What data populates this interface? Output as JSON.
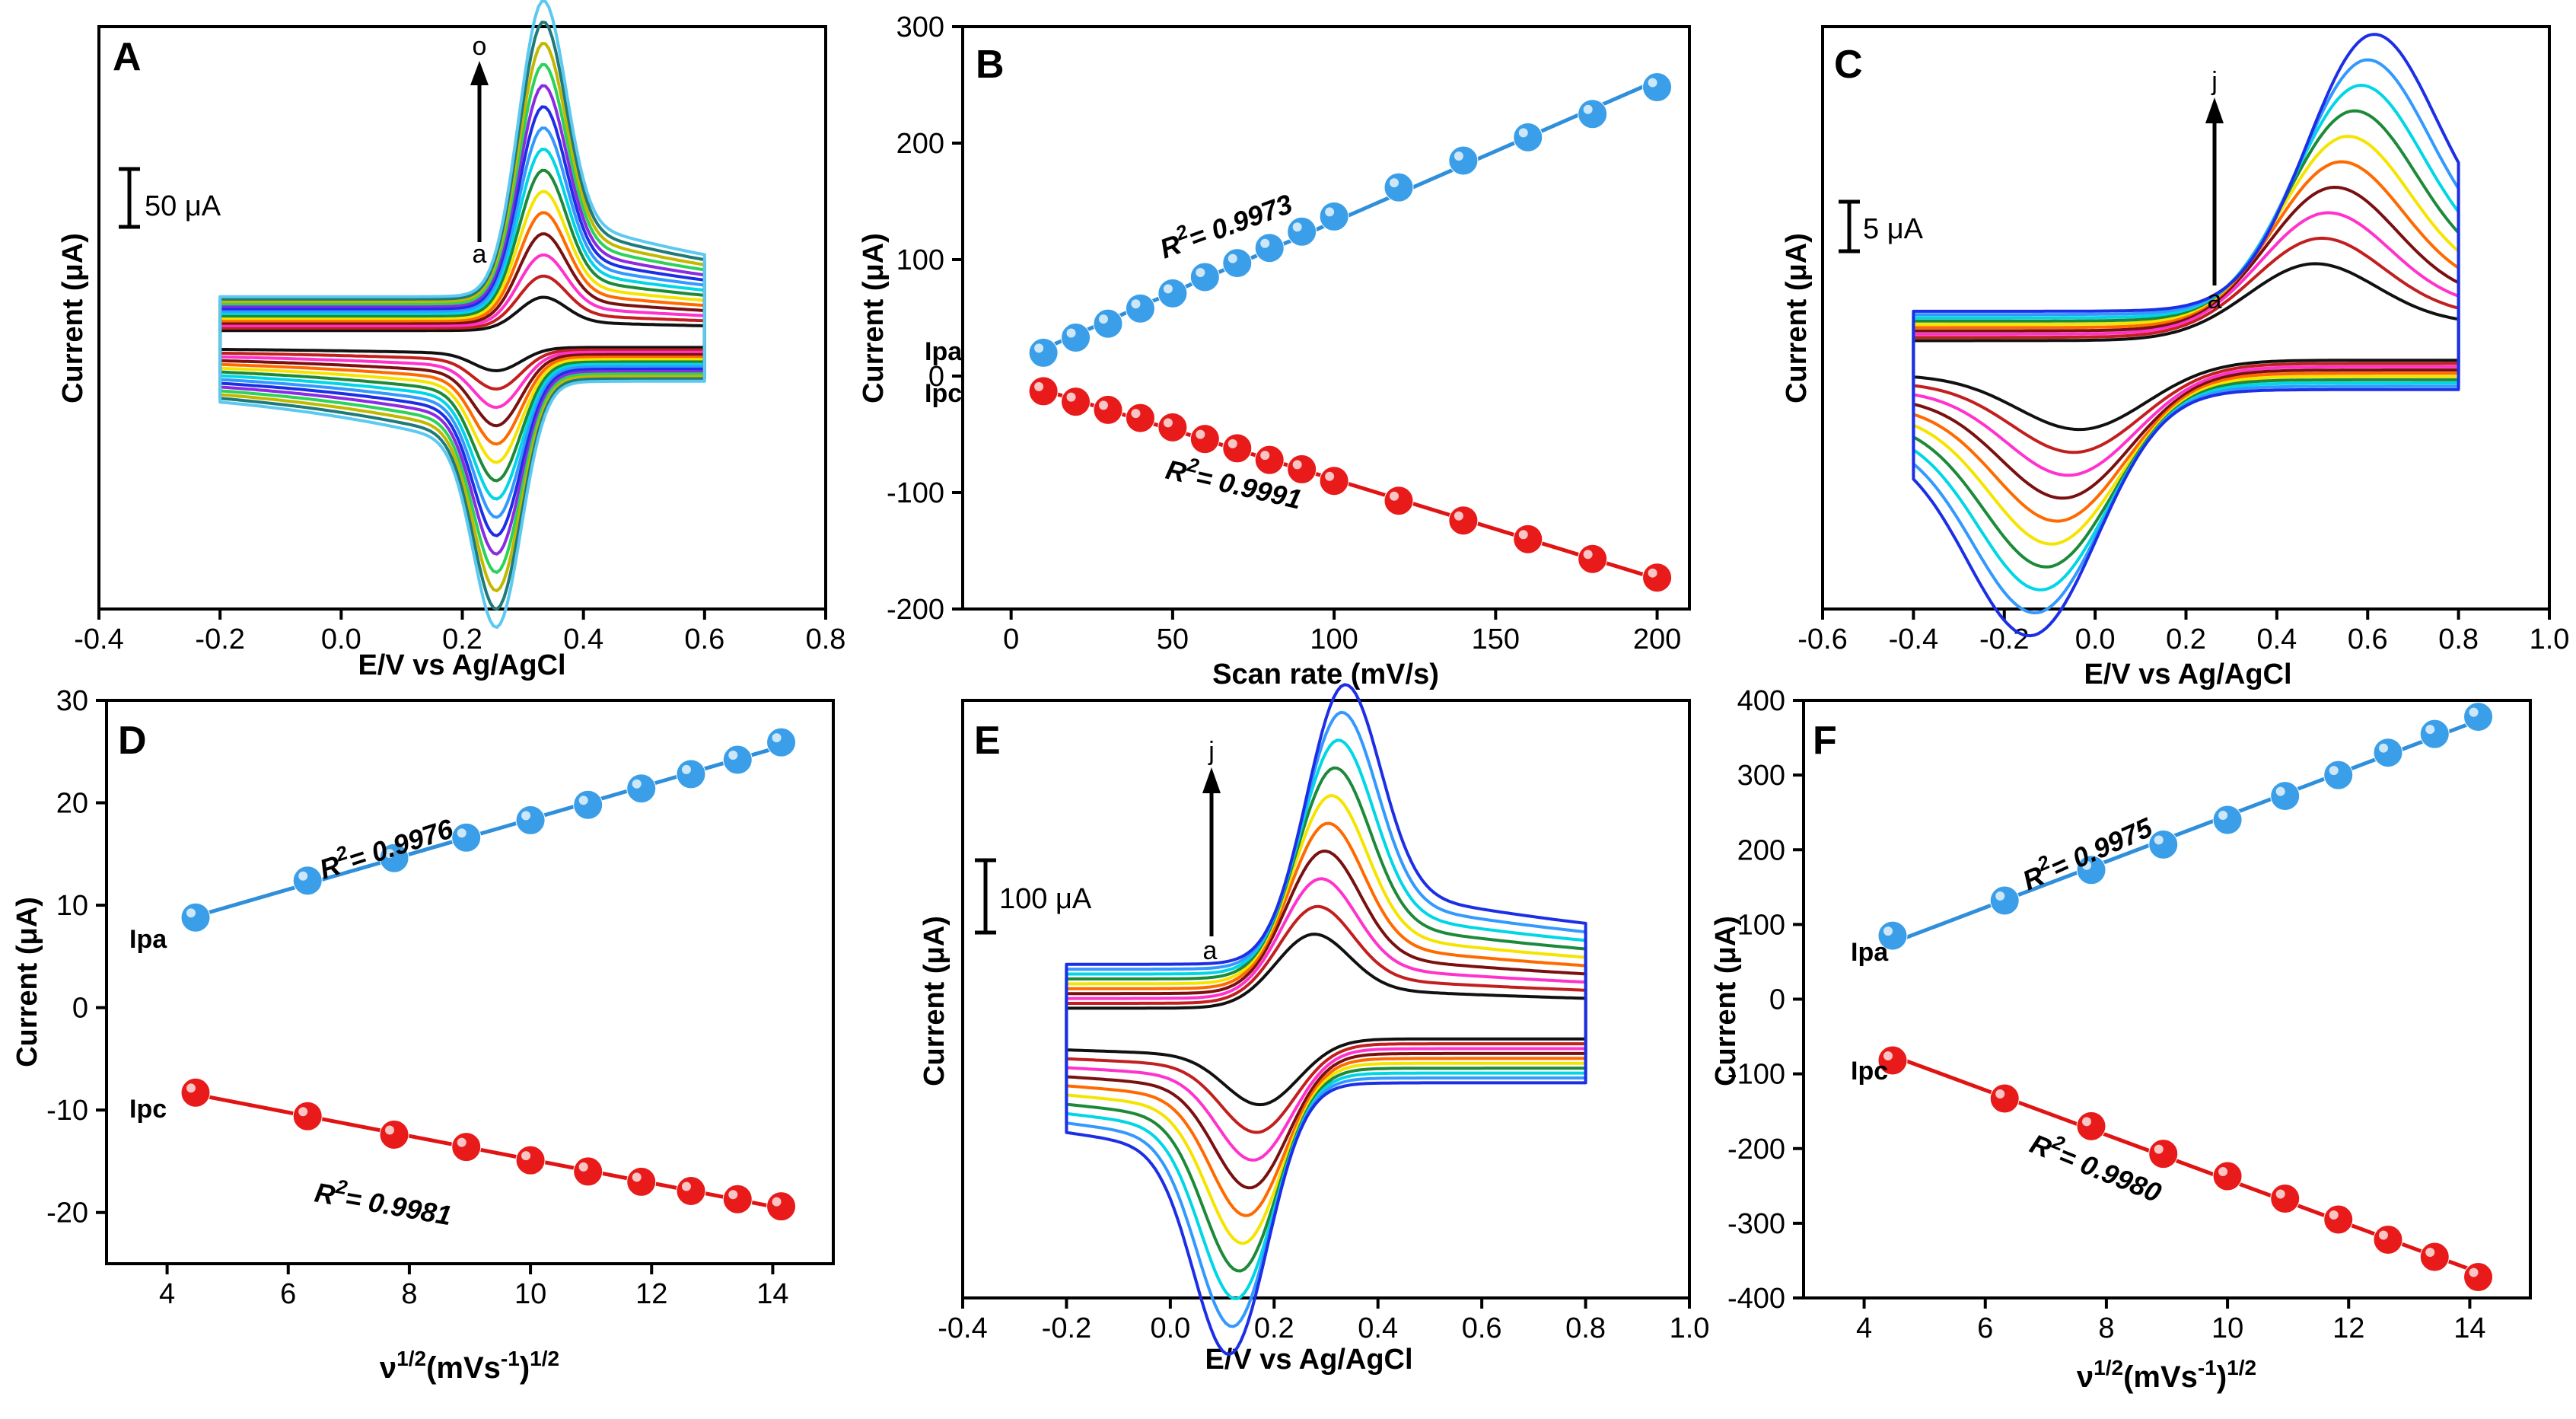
{
  "colors": {
    "cv": [
      "#111111",
      "#c21f1f",
      "#ff33cc",
      "#7a1010",
      "#ff6a00",
      "#f5e400",
      "#1d8a3a",
      "#00d6e6",
      "#3399ff",
      "#1c2ee6",
      "#8b2be2",
      "#2ed15a",
      "#c2b800",
      "#1f7a7a",
      "#5cc9f0",
      "#2a2aff"
    ],
    "ipa_line": "#2f8fdb",
    "ipa_marker": "#3a9fe8",
    "ipc_line": "#e11414",
    "ipc_marker": "#e81a1a",
    "frame": "#000000"
  },
  "chart_data": [
    {
      "panel": "A",
      "type": "line",
      "subtype": "cyclic-voltammogram",
      "xlabel": "E/V vs Ag/AgCl",
      "ylabel": "Current (μA)",
      "xlim": [
        -0.4,
        0.8
      ],
      "xticks": [
        -0.4,
        -0.2,
        0.0,
        0.2,
        0.4,
        0.6,
        0.8
      ],
      "tick_labels": [
        "-0.4",
        "-0.2",
        "0.0",
        "0.2",
        "0.4",
        "0.6",
        "0.8"
      ],
      "scalebar": "50 μA",
      "arrow_from": "a",
      "arrow_to": "o",
      "curve_count": 15,
      "cv_params": {
        "e_start": -0.2,
        "e_end": 0.6,
        "ea": 0.33,
        "ec": 0.26,
        "ipa_max": 178,
        "ipc_max": 148,
        "cap_max": 30,
        "ipa_min": 20,
        "ipc_min": 14,
        "cap_min": 6,
        "width": 0.055,
        "yrange": [
          -170,
          200
        ]
      }
    },
    {
      "panel": "B",
      "type": "scatter",
      "subtype": "linear-fit",
      "xlabel": "Scan rate (mV/s)",
      "ylabel": "Current (μA)",
      "xlim": [
        -15,
        210
      ],
      "ylim": [
        -200,
        300
      ],
      "xticks": [
        0,
        50,
        100,
        150,
        200
      ],
      "yticks": [
        -200,
        -100,
        0,
        100,
        200,
        300
      ],
      "tick_labels_x": [
        "0",
        "50",
        "100",
        "150",
        "200"
      ],
      "tick_labels_y": [
        "-200",
        "-100",
        "0",
        "100",
        "200",
        "300"
      ],
      "series": [
        {
          "name": "Ipa",
          "x": [
            10,
            20,
            30,
            40,
            50,
            60,
            70,
            80,
            90,
            100,
            120,
            140,
            160,
            180,
            200
          ],
          "values": [
            20,
            33,
            45,
            58,
            71,
            85,
            97,
            110,
            124,
            137,
            162,
            185,
            205,
            225,
            248
          ],
          "r2": "0.9973"
        },
        {
          "name": "Ipc",
          "x": [
            10,
            20,
            30,
            40,
            50,
            60,
            70,
            80,
            90,
            100,
            120,
            140,
            160,
            180,
            200
          ],
          "values": [
            -13,
            -22,
            -29,
            -36,
            -44,
            -54,
            -62,
            -72,
            -80,
            -90,
            -107,
            -124,
            -140,
            -157,
            -173
          ],
          "r2": "0.9991"
        }
      ]
    },
    {
      "panel": "C",
      "type": "line",
      "subtype": "cyclic-voltammogram",
      "xlabel": "E/V vs Ag/AgCl",
      "ylabel": "Current (μA)",
      "xlim": [
        -0.6,
        1.0
      ],
      "xticks": [
        -0.6,
        -0.4,
        -0.2,
        0.0,
        0.2,
        0.4,
        0.6,
        0.8,
        1.0
      ],
      "tick_labels": [
        "-0.6",
        "-0.4",
        "-0.2",
        "0.0",
        "0.2",
        "0.4",
        "0.6",
        "0.8",
        "1.0"
      ],
      "scalebar": "5 μA",
      "arrow_from": "a",
      "arrow_to": "j",
      "curve_count": 10,
      "cv_params": {
        "e_start": -0.4,
        "e_end": 0.8,
        "ea": 0.47,
        "ec": -0.02,
        "ea_shift": 0.13,
        "ec_shift": -0.11,
        "ipa_max": 36,
        "ipc_max": 32,
        "cap_max": 6,
        "ipa_min": 10,
        "ipc_min": 9,
        "cap_min": 1.5,
        "width": 0.2,
        "yrange": [
          -35,
          45
        ]
      }
    },
    {
      "panel": "D",
      "type": "scatter",
      "subtype": "linear-fit",
      "xlabel": "ν1/2(mVs-1)1/2",
      "ylabel": "Current (μA)",
      "xlim": [
        3,
        15
      ],
      "ylim": [
        -25,
        30
      ],
      "xticks": [
        4,
        6,
        8,
        10,
        12,
        14
      ],
      "yticks": [
        -20,
        -10,
        0,
        10,
        20,
        30
      ],
      "tick_labels_x": [
        "4",
        "6",
        "8",
        "10",
        "12",
        "14"
      ],
      "tick_labels_y": [
        "-20",
        "-10",
        "0",
        "10",
        "20",
        "30"
      ],
      "series": [
        {
          "name": "Ipa",
          "x": [
            4.47,
            6.32,
            7.75,
            8.94,
            10.0,
            10.95,
            11.83,
            12.65,
            13.42,
            14.14
          ],
          "values": [
            8.8,
            12.4,
            14.6,
            16.6,
            18.3,
            19.8,
            21.4,
            22.8,
            24.2,
            25.9
          ],
          "r2": "0.9976"
        },
        {
          "name": "Ipc",
          "x": [
            4.47,
            6.32,
            7.75,
            8.94,
            10.0,
            10.95,
            11.83,
            12.65,
            13.42,
            14.14
          ],
          "values": [
            -8.3,
            -10.6,
            -12.4,
            -13.6,
            -14.9,
            -16.0,
            -17.0,
            -17.9,
            -18.7,
            -19.4
          ],
          "r2": "0.9981"
        }
      ]
    },
    {
      "panel": "E",
      "type": "line",
      "subtype": "cyclic-voltammogram",
      "xlabel": "E/V vs Ag/AgCl",
      "ylabel": "Current (μA)",
      "xlim": [
        -0.4,
        1.0
      ],
      "xticks": [
        -0.4,
        -0.2,
        0.0,
        0.2,
        0.4,
        0.6,
        0.8,
        1.0
      ],
      "tick_labels": [
        "-0.4",
        "-0.2",
        "0.0",
        "0.2",
        "0.4",
        "0.6",
        "0.8",
        "1.0"
      ],
      "scalebar": "100 μA",
      "arrow_from": "a",
      "arrow_to": "j",
      "curve_count": 10,
      "cv_params": {
        "e_start": -0.2,
        "e_end": 0.8,
        "ea": 0.27,
        "ec": 0.18,
        "ea_shift": 0.06,
        "ec_shift": -0.06,
        "ipa_max": 340,
        "ipc_max": 330,
        "cap_max": 85,
        "ipa_min": 90,
        "ipc_min": 80,
        "cap_min": 22,
        "width": 0.1,
        "yrange": [
          -350,
          420
        ]
      }
    },
    {
      "panel": "F",
      "type": "scatter",
      "subtype": "linear-fit",
      "xlabel": "ν1/2(mVs-1)1/2",
      "ylabel": "Current (μA)",
      "xlim": [
        3,
        15
      ],
      "ylim": [
        -400,
        400
      ],
      "xticks": [
        4,
        6,
        8,
        10,
        12,
        14
      ],
      "yticks": [
        -400,
        -300,
        -200,
        -100,
        0,
        100,
        200,
        300,
        400
      ],
      "tick_labels_x": [
        "4",
        "6",
        "8",
        "10",
        "12",
        "14"
      ],
      "tick_labels_y": [
        "-400",
        "-300",
        "-200",
        "-100",
        "0",
        "100",
        "200",
        "300",
        "400"
      ],
      "series": [
        {
          "name": "Ipa",
          "x": [
            4.47,
            6.32,
            7.75,
            8.94,
            10.0,
            10.95,
            11.83,
            12.65,
            13.42,
            14.14
          ],
          "values": [
            85,
            132,
            173,
            207,
            240,
            272,
            300,
            330,
            355,
            378
          ],
          "r2": "0.9975"
        },
        {
          "name": "Ipc",
          "x": [
            4.47,
            6.32,
            7.75,
            8.94,
            10.0,
            10.95,
            11.83,
            12.65,
            13.42,
            14.14
          ],
          "values": [
            -82,
            -133,
            -170,
            -207,
            -237,
            -267,
            -295,
            -322,
            -345,
            -372
          ],
          "r2": "0.9980"
        }
      ]
    }
  ]
}
